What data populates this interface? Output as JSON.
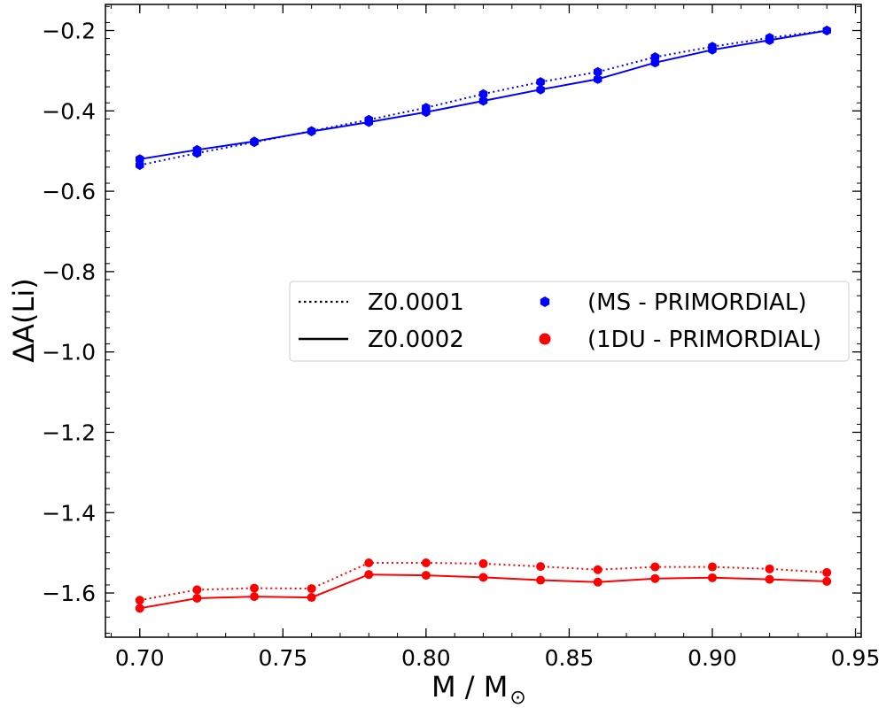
{
  "chart_data": {
    "type": "line",
    "xlabel": "M / M",
    "xlabel_symbol": "⊙",
    "ylabel": "ΔA(Li)",
    "xlim": [
      0.688,
      0.952
    ],
    "ylim": [
      -1.71,
      -0.135
    ],
    "x_ticks": [
      0.7,
      0.75,
      0.8,
      0.85,
      0.9,
      0.95
    ],
    "x_tick_labels": [
      "0.70",
      "0.75",
      "0.80",
      "0.85",
      "0.90",
      "0.95"
    ],
    "y_ticks": [
      -1.6,
      -1.4,
      -1.2,
      -1.0,
      -0.8,
      -0.6,
      -0.4,
      -0.2
    ],
    "y_tick_labels": [
      "−1.6",
      "−1.4",
      "−1.2",
      "−1.0",
      "−0.8",
      "−0.6",
      "−0.4",
      "−0.2"
    ],
    "grid": false,
    "legend_position": "center-right",
    "x": [
      0.7,
      0.72,
      0.74,
      0.76,
      0.78,
      0.8,
      0.82,
      0.84,
      0.86,
      0.88,
      0.9,
      0.92,
      0.94
    ],
    "series": [
      {
        "metallicity": "Z0.0001",
        "quantity": "(MS - PRIMORDIAL)",
        "style": "dotted",
        "marker": "hexagon",
        "color": "#0000ff",
        "values": [
          -0.535,
          -0.505,
          -0.478,
          -0.45,
          -0.422,
          -0.392,
          -0.358,
          -0.328,
          -0.303,
          -0.266,
          -0.24,
          -0.218,
          -0.2
        ]
      },
      {
        "metallicity": "Z0.0002",
        "quantity": "(MS - PRIMORDIAL)",
        "style": "solid",
        "marker": "hexagon",
        "color": "#0000ff",
        "values": [
          -0.52,
          -0.497,
          -0.476,
          -0.451,
          -0.428,
          -0.403,
          -0.375,
          -0.347,
          -0.321,
          -0.28,
          -0.248,
          -0.224,
          -0.2
        ]
      },
      {
        "metallicity": "Z0.0001",
        "quantity": "(1DU - PRIMORDIAL)",
        "style": "dotted",
        "marker": "circle",
        "color": "#ff0000",
        "values": [
          -1.618,
          -1.592,
          -1.588,
          -1.589,
          -1.525,
          -1.525,
          -1.527,
          -1.534,
          -1.542,
          -1.535,
          -1.535,
          -1.54,
          -1.549
        ]
      },
      {
        "metallicity": "Z0.0002",
        "quantity": "(1DU - PRIMORDIAL)",
        "style": "solid",
        "marker": "circle",
        "color": "#ff0000",
        "values": [
          -1.638,
          -1.613,
          -1.609,
          -1.611,
          -1.554,
          -1.556,
          -1.561,
          -1.568,
          -1.573,
          -1.564,
          -1.562,
          -1.566,
          -1.571
        ]
      }
    ],
    "legend": {
      "line_entries": [
        {
          "label": "Z0.0001",
          "style": "dotted"
        },
        {
          "label": "Z0.0002",
          "style": "solid"
        }
      ],
      "marker_entries": [
        {
          "label": "(MS - PRIMORDIAL)",
          "marker": "hexagon",
          "color": "#0000ff"
        },
        {
          "label": "(1DU - PRIMORDIAL)",
          "marker": "circle",
          "color": "#ff0000"
        }
      ]
    }
  }
}
